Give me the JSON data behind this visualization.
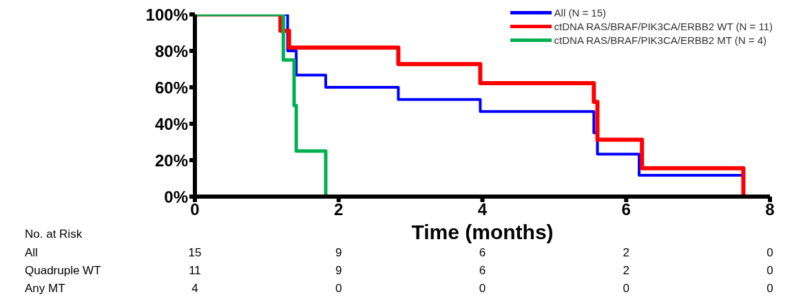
{
  "chart_data": {
    "type": "step",
    "xlabel": "Time (months)",
    "xlim": [
      0,
      8
    ],
    "xticks": [
      0,
      2,
      4,
      6,
      8
    ],
    "ylim": [
      0,
      100
    ],
    "yticks": [
      {
        "value": 0,
        "label": "0%"
      },
      {
        "value": 20,
        "label": "20%"
      },
      {
        "value": 40,
        "label": "40%"
      },
      {
        "value": 60,
        "label": "60%"
      },
      {
        "value": 80,
        "label": "80%"
      },
      {
        "value": 100,
        "label": "100%"
      }
    ],
    "series": [
      {
        "name": "All (N = 15)",
        "color": "#0000ff",
        "x": [
          0,
          1.29,
          1.41,
          1.82,
          2.83,
          3.97,
          5.55,
          5.6,
          6.18,
          7.63
        ],
        "values": [
          100,
          80,
          66.7,
          60,
          53.3,
          46.7,
          35,
          23.3,
          11.7,
          0
        ]
      },
      {
        "name": "ctDNA RAS/BRAF/PIK3CA/ERBB2 WT (N = 11)",
        "color": "#ff0000",
        "x": [
          0,
          1.19,
          1.31,
          2.83,
          3.97,
          5.55,
          5.6,
          6.22,
          7.63
        ],
        "values": [
          100,
          91,
          81.8,
          72.7,
          62.3,
          52,
          31.2,
          15.6,
          0
        ]
      },
      {
        "name": "ctDNA RAS/BRAF/PIK3CA/ERBB2 MT (N = 4)",
        "color": "#00b050",
        "x": [
          0,
          1.23,
          1.38,
          1.41,
          1.82
        ],
        "values": [
          100,
          75,
          50,
          25,
          0
        ]
      }
    ],
    "legend": "top right",
    "grid": false,
    "annotations": [
      "No. at Risk",
      "All",
      "15",
      "9",
      "6",
      "2",
      "0",
      "Quadruple WT",
      "11",
      "9",
      "6",
      "2",
      "0",
      "Any MT",
      "4",
      "0",
      "0",
      "0",
      "0"
    ]
  }
}
